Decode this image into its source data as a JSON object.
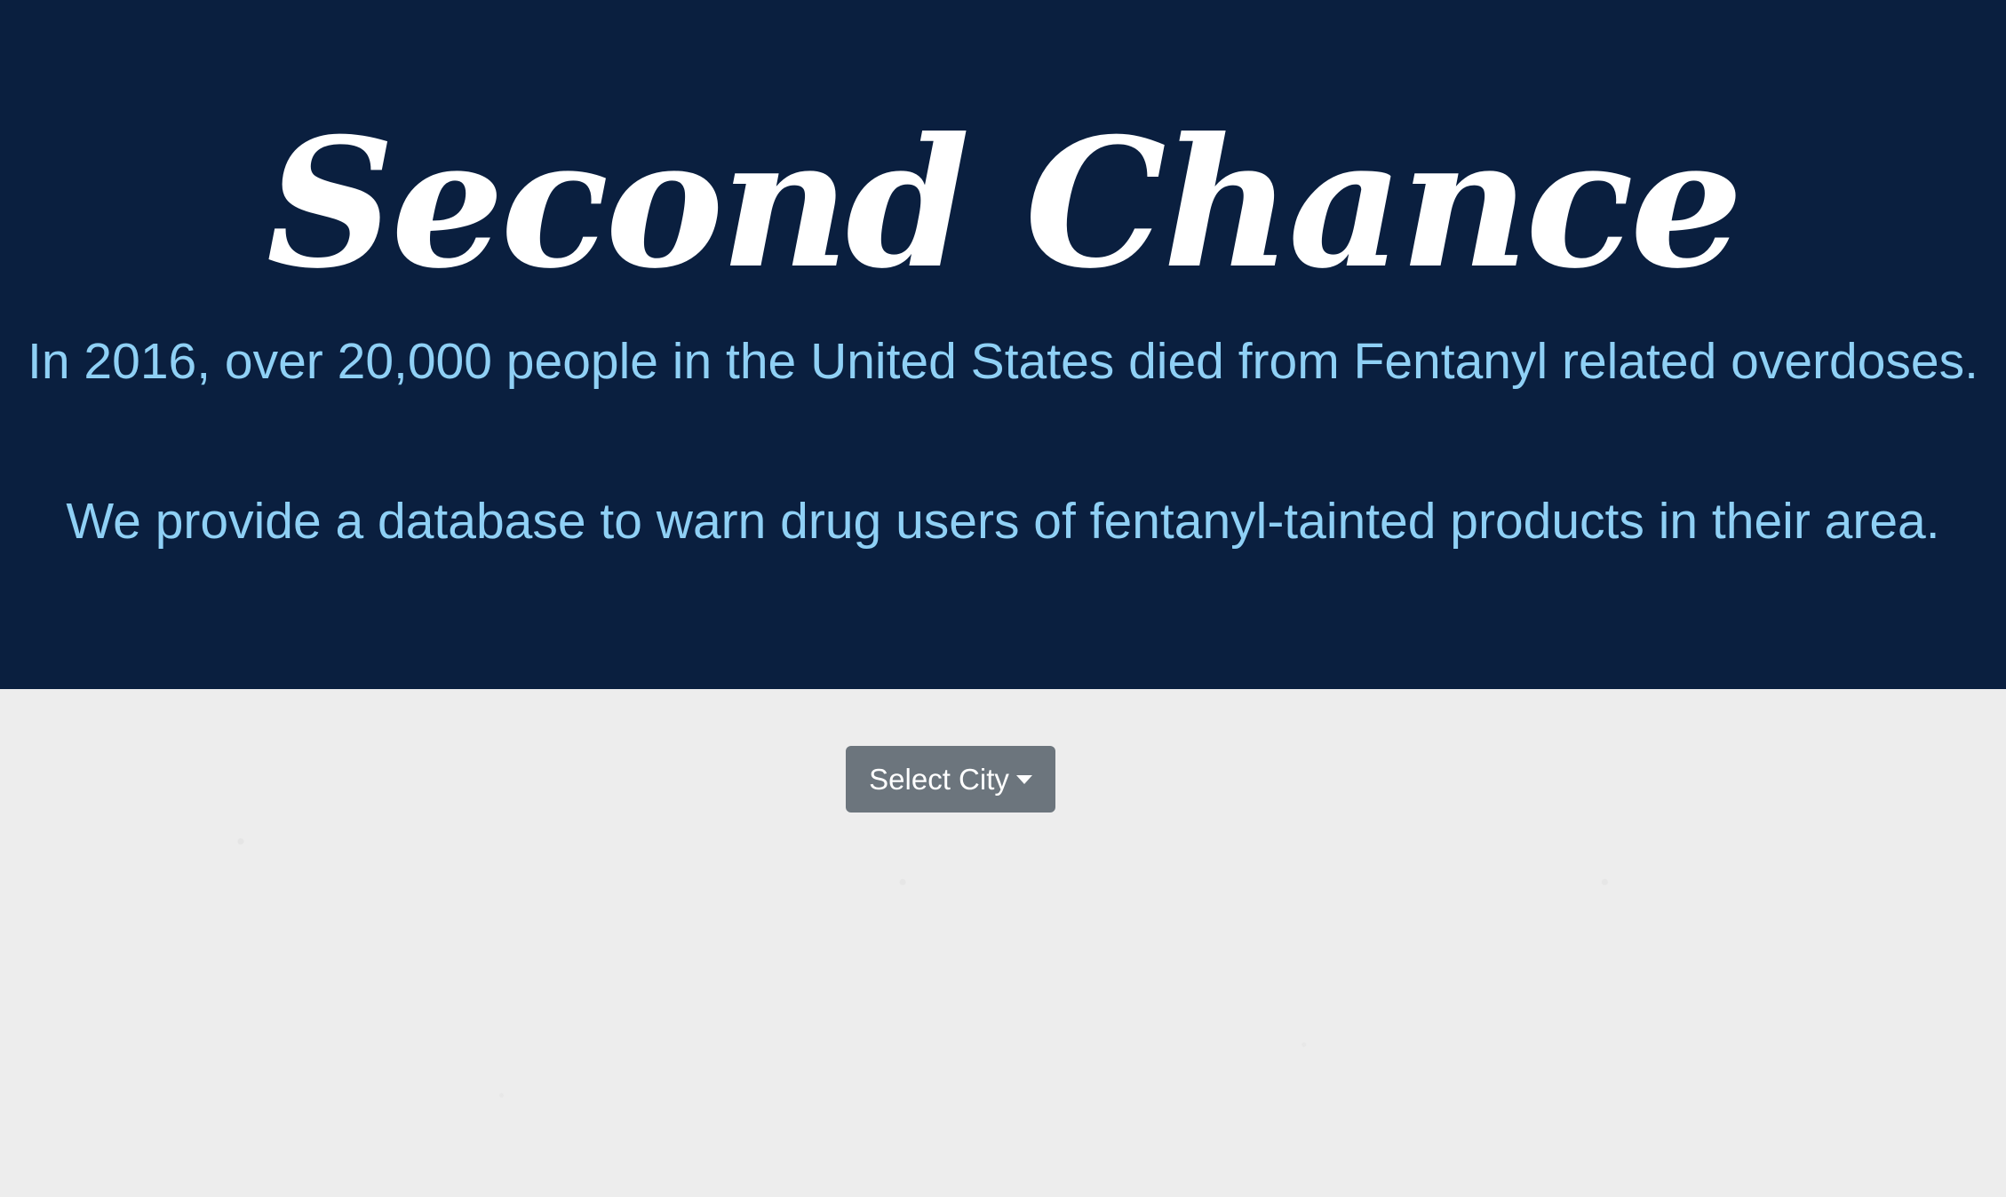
{
  "hero": {
    "title": "Second Chance",
    "tagline_1": "In 2016, over 20,000 people in the United States died from Fentanyl related overdoses.",
    "tagline_2": "We provide a database to warn drug users of fentanyl-tainted products in their area."
  },
  "city_select": {
    "label": "Select City",
    "icon": "caret-down-icon"
  },
  "colors": {
    "hero_background": "#0a1f3f",
    "title": "#ffffff",
    "tagline": "#8fd0f5",
    "button_background": "#6c757d",
    "page_background": "#ededed"
  }
}
